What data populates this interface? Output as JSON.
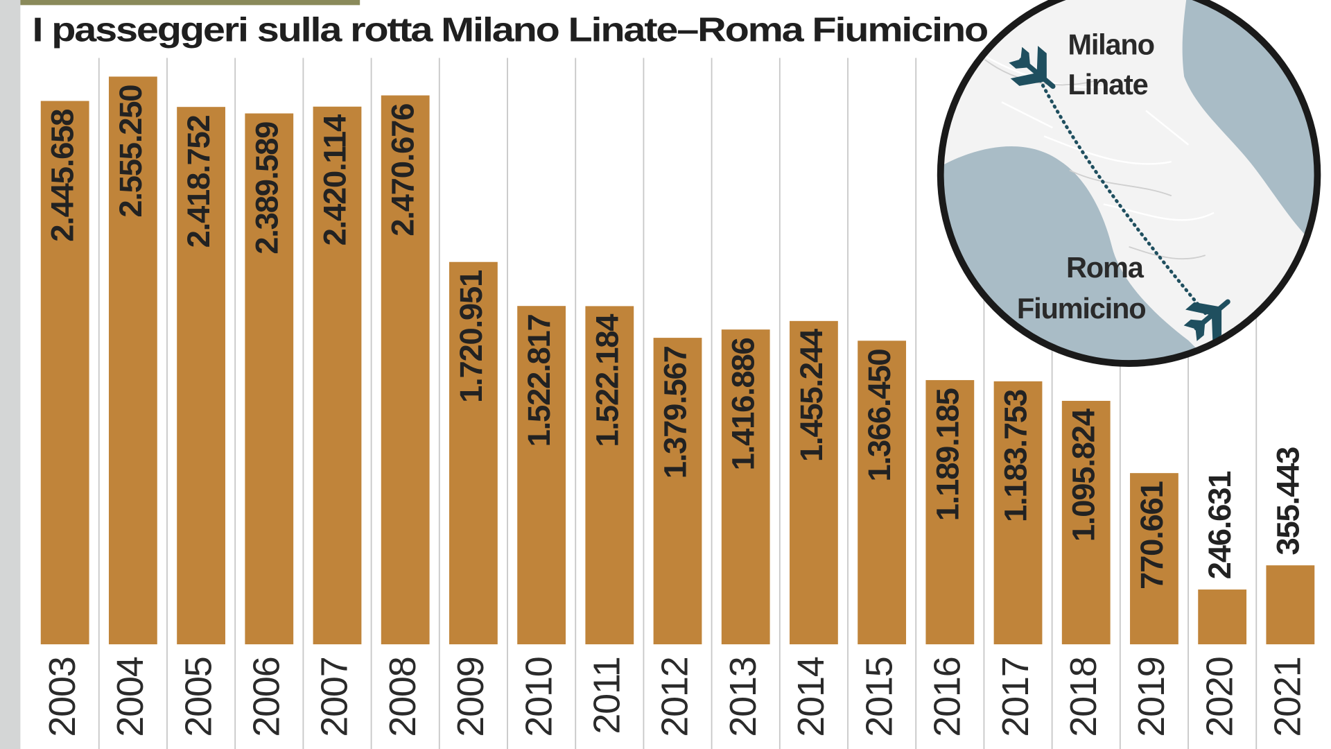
{
  "chart_data": {
    "type": "bar",
    "title": "I passeggeri sulla rotta Milano Linate–Roma Fiumicino",
    "categories": [
      "2003",
      "2004",
      "2005",
      "2006",
      "2007",
      "2008",
      "2009",
      "2010",
      "2011",
      "2012",
      "2013",
      "2014",
      "2015",
      "2016",
      "2017",
      "2018",
      "2019",
      "2020",
      "2021"
    ],
    "values": [
      2445658,
      2555250,
      2418752,
      2389589,
      2420114,
      2470676,
      1720951,
      1522817,
      1522184,
      1379567,
      1416886,
      1455244,
      1366450,
      1189185,
      1183753,
      1095824,
      770661,
      246631,
      355443
    ],
    "value_labels": [
      "2.445.658",
      "2.555.250",
      "2.418.752",
      "2.389.589",
      "2.420.114",
      "2.470.676",
      "1.720.951",
      "1.522.817",
      "1.522.184",
      "1.379.567",
      "1.416.886",
      "1.455.244",
      "1.366.450",
      "1.189.185",
      "1.183.753",
      "1.095.824",
      "770.661",
      "246.631",
      "355.443"
    ],
    "color": "#c0843a",
    "annotations": [
      "Milano",
      "Linate",
      "Roma",
      "Fiumicino"
    ]
  }
}
